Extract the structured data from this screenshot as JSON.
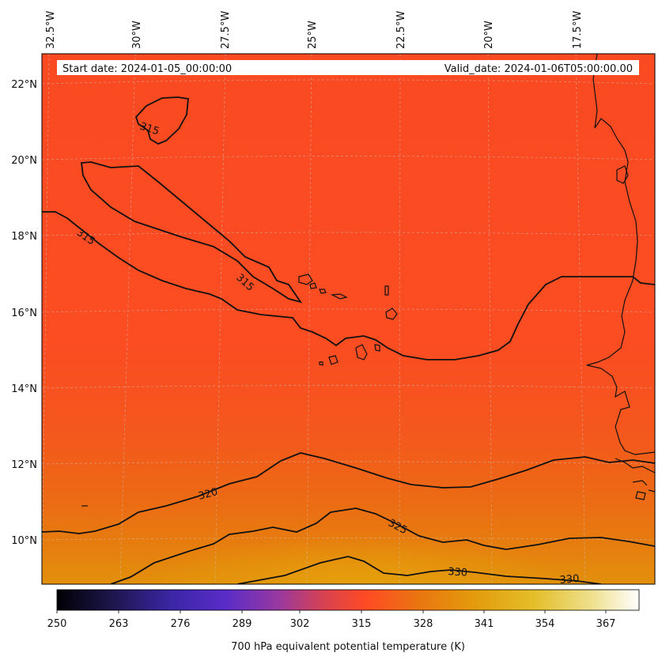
{
  "header": {
    "start_date": "Start date: 2024-01-05_00:00:00",
    "valid_date": "Valid_date: 2024-01-06T05:00:00.00"
  },
  "longitude_labels": [
    "32.5°W",
    "30°W",
    "27.5°W",
    "25°W",
    "22.5°W",
    "20°W",
    "17.5°W"
  ],
  "latitude_labels": [
    "22°N",
    "20°N",
    "18°N",
    "16°N",
    "14°N",
    "12°N",
    "10°N"
  ],
  "contour_labels": [
    "315",
    "315",
    "315",
    "320",
    "325",
    "330",
    "330"
  ],
  "colorbar": {
    "ticks": [
      "250",
      "263",
      "276",
      "289",
      "302",
      "315",
      "328",
      "341",
      "354",
      "367"
    ],
    "label": "700 hPa equivalent potential temperature (K)",
    "colors": [
      "#000004",
      "#2a1f6e",
      "#4a2ac9",
      "#8a3aa6",
      "#d8404a",
      "#ff4a24",
      "#e87a0c",
      "#e3a80e",
      "#e8d040",
      "#f6f3dc",
      "#ffffff"
    ]
  },
  "map": {
    "field_colors": {
      "north": "#fc4b24",
      "center": "#f6531f",
      "south": "#e8770f",
      "hot": "#e4940c"
    }
  }
}
